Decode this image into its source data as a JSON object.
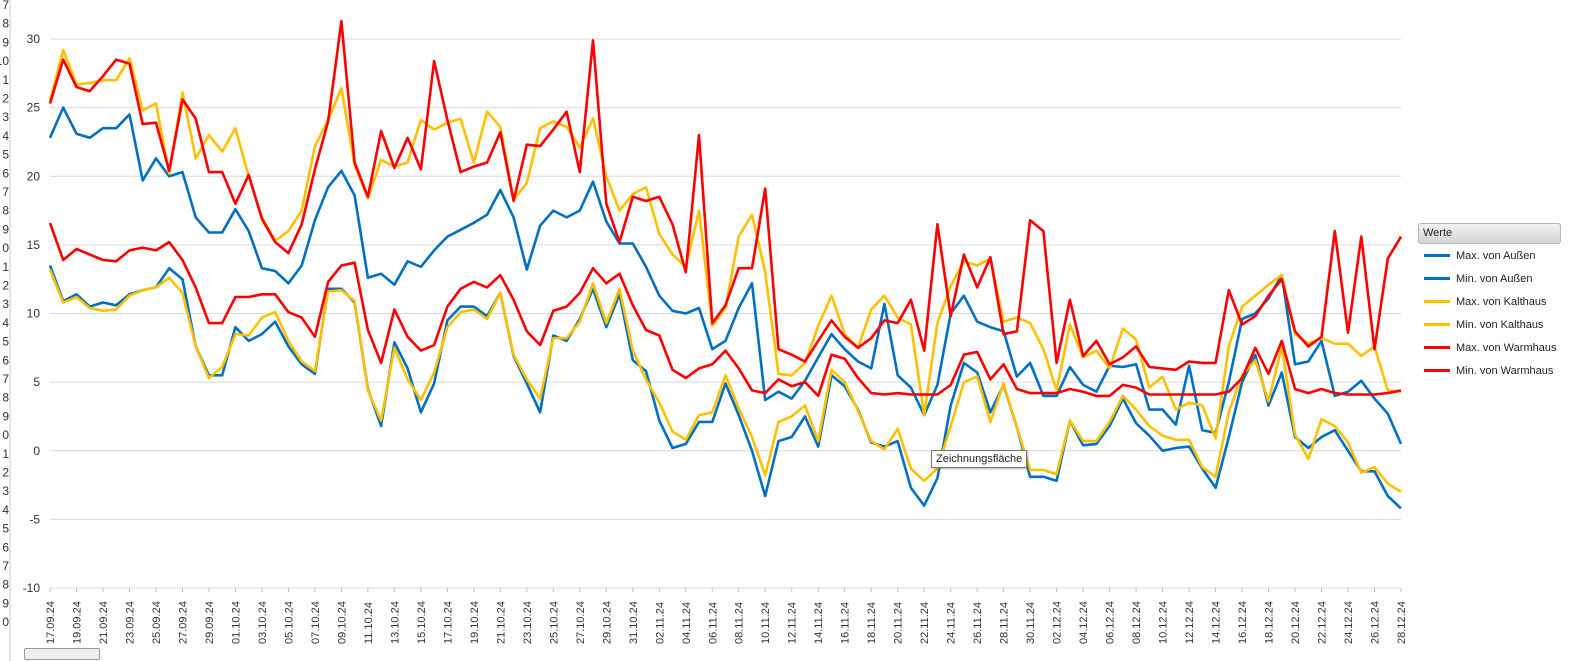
{
  "row_header_labels": [
    "7",
    "8",
    "9",
    "10",
    "1",
    "2",
    "3",
    "4",
    "5",
    "6",
    "7",
    "8",
    "9",
    "0",
    "1",
    "2",
    "3",
    "4",
    "5",
    "6",
    "7",
    "8",
    "9",
    "0",
    "1",
    "2",
    "3",
    "4",
    "5",
    "6",
    "7",
    "8",
    "9",
    "0"
  ],
  "tooltip": "Zeichnungsfläche",
  "chart_data": {
    "type": "line",
    "ylim": [
      -10,
      30
    ],
    "yticks": [
      -10,
      -5,
      0,
      5,
      10,
      15,
      20,
      25,
      30
    ],
    "grid": true,
    "legend_position": "right",
    "legend_title": "Werte",
    "categories": [
      "17.09.24",
      "18.09.24",
      "19.09.24",
      "20.09.24",
      "21.09.24",
      "22.09.24",
      "23.09.24",
      "24.09.24",
      "25.09.24",
      "26.09.24",
      "27.09.24",
      "28.09.24",
      "29.09.24",
      "30.09.24",
      "01.10.24",
      "02.10.24",
      "03.10.24",
      "04.10.24",
      "05.10.24",
      "06.10.24",
      "07.10.24",
      "08.10.24",
      "09.10.24",
      "10.10.24",
      "11.10.24",
      "12.10.24",
      "13.10.24",
      "14.10.24",
      "15.10.24",
      "16.10.24",
      "17.10.24",
      "18.10.24",
      "19.10.24",
      "20.10.24",
      "21.10.24",
      "22.10.24",
      "23.10.24",
      "24.10.24",
      "25.10.24",
      "26.10.24",
      "27.10.24",
      "28.10.24",
      "29.10.24",
      "30.10.24",
      "31.10.24",
      "01.11.24",
      "02.11.24",
      "03.11.24",
      "04.11.24",
      "05.11.24",
      "06.11.24",
      "07.11.24",
      "08.11.24",
      "09.11.24",
      "10.11.24",
      "11.11.24",
      "12.11.24",
      "13.11.24",
      "14.11.24",
      "15.11.24",
      "16.11.24",
      "17.11.24",
      "18.11.24",
      "19.11.24",
      "20.11.24",
      "21.11.24",
      "22.11.24",
      "23.11.24",
      "24.11.24",
      "25.11.24",
      "26.11.24",
      "27.11.24",
      "28.11.24",
      "29.11.24",
      "30.11.24",
      "01.12.24",
      "02.12.24",
      "03.12.24",
      "04.12.24",
      "05.12.24",
      "06.12.24",
      "07.12.24",
      "08.12.24",
      "09.12.24",
      "10.12.24",
      "11.12.24",
      "12.12.24",
      "13.12.24",
      "14.12.24",
      "15.12.24",
      "16.12.24",
      "17.12.24",
      "18.12.24",
      "19.12.24",
      "20.12.24",
      "21.12.24",
      "22.12.24",
      "23.12.24",
      "24.12.24",
      "25.12.24",
      "26.12.24",
      "27.12.24",
      "28.12.24"
    ],
    "xtick_labels": [
      "17.09.24",
      "19.09.24",
      "21.09.24",
      "23.09.24",
      "25.09.24",
      "27.09.24",
      "29.09.24",
      "01.10.24",
      "03.10.24",
      "05.10.24",
      "07.10.24",
      "09.10.24",
      "11.10.24",
      "13.10.24",
      "15.10.24",
      "17.10.24",
      "19.10.24",
      "21.10.24",
      "23.10.24",
      "25.10.24",
      "27.10.24",
      "29.10.24",
      "31.10.24",
      "02.11.24",
      "04.11.24",
      "06.11.24",
      "08.11.24",
      "10.11.24",
      "12.11.24",
      "14.11.24",
      "16.11.24",
      "18.11.24",
      "20.11.24",
      "22.11.24",
      "24.11.24",
      "26.11.24",
      "28.11.24",
      "30.11.24",
      "02.12.24",
      "04.12.24",
      "06.12.24",
      "08.12.24",
      "10.12.24",
      "12.12.24",
      "14.12.24",
      "16.12.24",
      "18.12.24",
      "20.12.24",
      "22.12.24",
      "24.12.24",
      "26.12.24",
      "28.12.24"
    ],
    "series": [
      {
        "name": "Max. von Außen",
        "color": "#0070c0",
        "values": [
          22.8,
          25.0,
          23.1,
          22.8,
          23.5,
          23.5,
          24.5,
          19.7,
          21.3,
          20.0,
          20.3,
          17.0,
          15.9,
          15.9,
          17.6,
          16.0,
          13.3,
          13.1,
          12.2,
          13.5,
          16.8,
          19.2,
          20.4,
          18.6,
          12.6,
          12.9,
          12.1,
          13.8,
          13.4,
          14.6,
          15.6,
          16.1,
          16.6,
          17.2,
          19.0,
          17.0,
          13.2,
          16.4,
          17.5,
          17.0,
          17.5,
          19.6,
          16.7,
          15.1,
          15.1,
          13.4,
          11.3,
          10.2,
          10.0,
          10.4,
          7.4,
          8.0,
          10.4,
          12.2,
          3.7,
          4.3,
          3.8,
          5.1,
          6.8,
          8.5,
          7.4,
          6.5,
          6.0,
          10.7,
          5.5,
          4.6,
          2.6,
          4.8,
          10.0,
          11.3,
          9.4,
          9.0,
          8.7,
          5.4,
          6.4,
          4.0,
          4.0,
          6.1,
          4.8,
          4.3,
          6.2,
          6.1,
          6.3,
          3.0,
          3.0,
          1.9,
          6.2,
          1.5,
          1.3,
          5.0,
          9.6,
          10.0,
          11.1,
          12.8,
          6.3,
          6.5,
          8.0,
          4.0,
          4.3,
          5.1,
          3.8,
          2.7,
          0.5
        ]
      },
      {
        "name": "Min. von Außen",
        "color": "#0070c0",
        "values": [
          13.5,
          10.9,
          11.4,
          10.5,
          10.8,
          10.6,
          11.4,
          11.7,
          11.9,
          13.3,
          12.5,
          7.6,
          5.5,
          5.5,
          9.0,
          8.0,
          8.5,
          9.4,
          7.6,
          6.3,
          5.6,
          11.8,
          11.8,
          10.8,
          4.5,
          1.8,
          7.9,
          6.0,
          2.8,
          4.9,
          9.5,
          10.5,
          10.5,
          9.8,
          11.5,
          6.9,
          4.9,
          2.8,
          8.4,
          8.0,
          9.6,
          11.8,
          9.0,
          11.4,
          6.6,
          5.8,
          2.2,
          0.2,
          0.5,
          2.1,
          2.1,
          4.9,
          2.6,
          0.0,
          -3.3,
          0.7,
          1.0,
          2.5,
          0.3,
          5.5,
          4.7,
          3.0,
          0.6,
          0.3,
          0.7,
          -2.7,
          -4.0,
          -2.0,
          3.3,
          6.4,
          5.7,
          2.8,
          4.8,
          1.7,
          -1.9,
          -1.9,
          -2.2,
          2.2,
          0.4,
          0.5,
          1.8,
          3.8,
          2.0,
          1.1,
          0.0,
          0.2,
          0.3,
          -1.3,
          -2.7,
          1.0,
          5.0,
          7.0,
          3.3,
          5.7,
          1.0,
          0.2,
          1.0,
          1.5,
          0.0,
          -1.5,
          -1.5,
          -3.3,
          -4.2
        ]
      },
      {
        "name": "Max. von Kalthaus",
        "color": "#ffc000",
        "values": [
          25.5,
          29.2,
          26.7,
          26.8,
          27.0,
          27.0,
          28.6,
          24.8,
          25.3,
          20.2,
          26.1,
          21.3,
          23.0,
          21.8,
          23.5,
          20.0,
          17.0,
          15.3,
          16.0,
          17.5,
          22.2,
          24.1,
          26.4,
          20.8,
          18.4,
          21.2,
          20.7,
          21.0,
          24.1,
          23.4,
          23.9,
          24.2,
          21.0,
          24.7,
          23.6,
          18.3,
          19.5,
          23.5,
          24.0,
          23.6,
          22.1,
          24.2,
          20.0,
          17.5,
          18.7,
          19.2,
          15.8,
          14.3,
          13.4,
          17.5,
          9.1,
          10.4,
          15.6,
          17.2,
          13.0,
          5.6,
          5.5,
          6.4,
          9.1,
          11.3,
          8.5,
          7.5,
          10.3,
          11.3,
          9.7,
          9.2,
          2.6,
          9.3,
          12.0,
          13.8,
          13.5,
          14.0,
          9.4,
          9.7,
          9.3,
          7.4,
          4.4,
          9.2,
          6.8,
          7.3,
          6.0,
          8.9,
          8.1,
          4.6,
          5.4,
          3.0,
          3.5,
          3.3,
          0.9,
          7.6,
          10.5,
          11.3,
          12.1,
          12.8,
          8.5,
          7.8,
          8.2,
          7.8,
          7.8,
          6.9,
          7.6,
          4.4,
          4.3
        ]
      },
      {
        "name": "Min. von Kalthaus",
        "color": "#ffc000",
        "values": [
          13.2,
          10.8,
          11.2,
          10.4,
          10.2,
          10.3,
          11.3,
          11.7,
          11.9,
          12.6,
          11.5,
          7.6,
          5.3,
          6.1,
          8.5,
          8.4,
          9.7,
          10.1,
          8.0,
          6.5,
          5.8,
          11.6,
          11.7,
          10.9,
          4.4,
          2.2,
          7.5,
          5.2,
          3.7,
          5.7,
          9.0,
          10.1,
          10.3,
          9.6,
          11.5,
          7.0,
          5.2,
          3.8,
          8.2,
          8.2,
          9.4,
          12.2,
          9.3,
          11.8,
          7.3,
          5.2,
          3.5,
          1.4,
          0.8,
          2.6,
          2.8,
          5.5,
          3.1,
          1.0,
          -1.8,
          2.1,
          2.5,
          3.3,
          0.7,
          5.9,
          5.0,
          2.9,
          0.7,
          0.1,
          1.6,
          -1.3,
          -2.2,
          -1.3,
          1.8,
          5.0,
          5.4,
          2.1,
          4.9,
          1.7,
          -1.4,
          -1.4,
          -1.7,
          2.2,
          0.7,
          0.7,
          2.1,
          4.0,
          3.0,
          1.8,
          1.1,
          0.8,
          0.8,
          -1.2,
          -1.9,
          2.8,
          5.5,
          6.6,
          3.6,
          7.6,
          1.2,
          -0.6,
          2.3,
          1.8,
          0.6,
          -1.6,
          -1.2,
          -2.4,
          -3.0
        ]
      },
      {
        "name": "Max. von Warmhaus",
        "color": "#ff0000",
        "values": [
          25.3,
          28.5,
          26.5,
          26.2,
          27.3,
          28.5,
          28.2,
          23.8,
          23.9,
          20.4,
          25.6,
          24.2,
          20.3,
          20.3,
          18.0,
          20.1,
          16.9,
          15.2,
          14.4,
          16.5,
          20.5,
          24.0,
          31.3,
          21.0,
          18.5,
          23.3,
          20.6,
          22.8,
          20.5,
          28.4,
          24.1,
          20.3,
          20.7,
          21.0,
          23.2,
          18.2,
          22.3,
          22.2,
          23.4,
          24.7,
          20.3,
          29.9,
          18.0,
          15.2,
          18.5,
          18.2,
          18.5,
          16.5,
          13.0,
          23.0,
          9.3,
          10.6,
          13.3,
          13.3,
          19.1,
          7.4,
          7.0,
          6.5,
          8.0,
          9.5,
          8.3,
          7.5,
          8.2,
          9.5,
          9.3,
          11.0,
          7.3,
          16.5,
          9.8,
          14.3,
          11.9,
          14.1,
          8.5,
          8.7,
          16.8,
          16.0,
          6.4,
          11.0,
          6.9,
          8.0,
          6.3,
          6.8,
          7.6,
          6.1,
          6.0,
          5.9,
          6.5,
          6.4,
          6.4,
          11.7,
          9.2,
          9.8,
          11.3,
          12.5,
          8.7,
          7.6,
          8.3,
          16.0,
          8.6,
          15.6,
          7.4,
          14.0,
          15.6
        ]
      },
      {
        "name": "Min. von Warmhaus",
        "color": "#ff0000",
        "values": [
          16.6,
          13.9,
          14.7,
          14.3,
          13.9,
          13.8,
          14.6,
          14.8,
          14.6,
          15.2,
          13.9,
          11.9,
          9.3,
          9.3,
          11.2,
          11.2,
          11.4,
          11.4,
          10.1,
          9.7,
          8.3,
          12.3,
          13.5,
          13.7,
          8.8,
          6.4,
          10.3,
          8.3,
          7.3,
          7.7,
          10.5,
          11.8,
          12.3,
          11.9,
          12.8,
          11.0,
          8.7,
          7.7,
          10.2,
          10.5,
          11.5,
          13.3,
          12.2,
          12.9,
          10.6,
          8.8,
          8.4,
          5.9,
          5.3,
          6.0,
          6.3,
          7.3,
          6.0,
          4.4,
          4.2,
          5.2,
          4.7,
          5.0,
          4.0,
          7.0,
          6.7,
          5.3,
          4.2,
          4.1,
          4.2,
          4.1,
          4.1,
          4.1,
          4.8,
          7.0,
          7.2,
          5.2,
          6.3,
          4.5,
          4.2,
          4.2,
          4.2,
          4.5,
          4.3,
          4.0,
          4.0,
          4.8,
          4.6,
          4.1,
          4.1,
          4.1,
          4.1,
          4.1,
          4.1,
          4.3,
          5.3,
          7.5,
          5.6,
          8.0,
          4.5,
          4.2,
          4.5,
          4.2,
          4.1,
          4.1,
          4.1,
          4.2,
          4.4
        ]
      }
    ]
  }
}
